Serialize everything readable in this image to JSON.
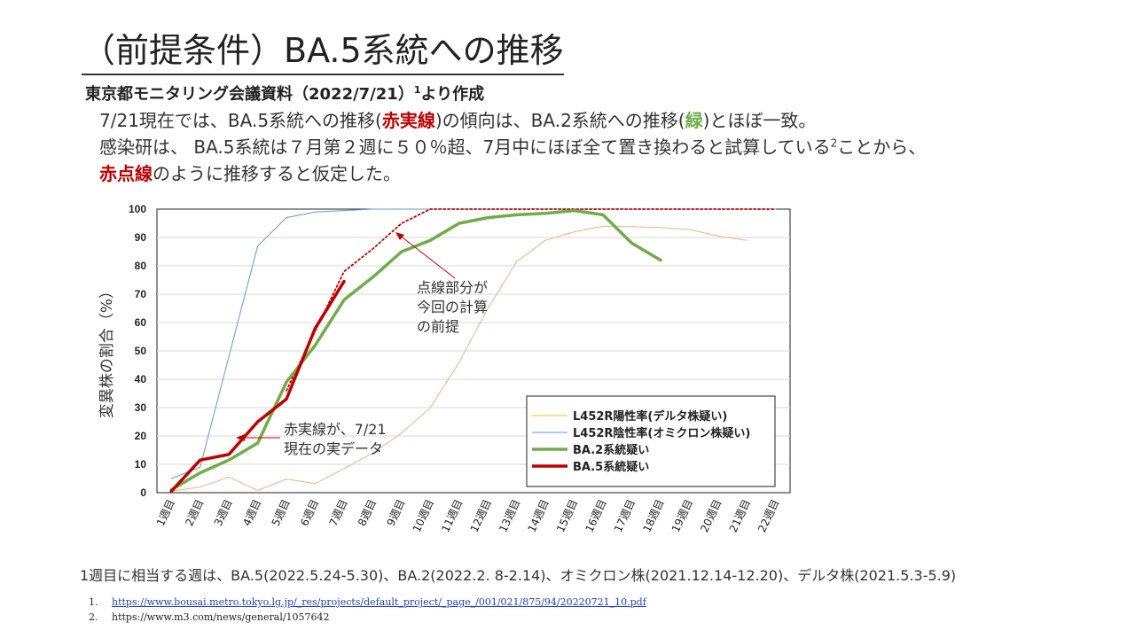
{
  "header": {
    "title": "（前提条件）BA.5系統への推移",
    "subtitle": "東京都モニタリング会議資料（2022/7/21）",
    "subtitle_sup": "1",
    "subtitle_suffix": "より作成"
  },
  "body_text": {
    "l1_a": "7/21現在では、BA.5系統への推移(",
    "l1_red": "赤実線",
    "l1_b": ")の傾向は、BA.2系統への推移(",
    "l1_green": "緑",
    "l1_c": ")とほぼ一致。",
    "l2_a": "感染研は、 BA.5系統は７月第２週に５０％超、7月中にほぼ全て置き換わると試算している",
    "l2_sup": "2",
    "l2_b": "ことから、",
    "l3_red": "赤点線",
    "l3_b": "のように推移すると仮定した。"
  },
  "footer": {
    "note": "1週目に相当する週は、BA.5(2022.5.24-5.30)、BA.2(2022.2. 8-2.14)、オミクロン株(2021.12.14-12.20)、デルタ株(2021.5.3-5.9)",
    "ref1_num": "1.",
    "ref1_text": "https://www.bousai.metro.tokyo.lg.jp/_res/projects/default_project/_page_/001/021/875/94/20220721_10.pdf",
    "ref2_num": "2.",
    "ref2_text": "https://www.m3.com/news/general/1057642"
  },
  "colors": {
    "delta": "#f4b183",
    "omicron": "#5b9bd5",
    "ba2": "#70ad47",
    "ba5": "#c00000",
    "l452r_pos_legend": "#ffc000"
  },
  "chart_data": {
    "type": "line",
    "categories": [
      "1週目",
      "2週目",
      "3週目",
      "4週目",
      "5週目",
      "6週目",
      "7週目",
      "8週目",
      "9週目",
      "10週目",
      "11週目",
      "12週目",
      "13週目",
      "14週目",
      "15週目",
      "16週目",
      "17週目",
      "18週目",
      "19週目",
      "20週目",
      "21週目",
      "22週目"
    ],
    "ylabel": "変異株の割合（%）",
    "ylim": [
      0,
      100
    ],
    "yticks": [
      0,
      10,
      20,
      30,
      40,
      50,
      60,
      70,
      80,
      90,
      100
    ],
    "grid": true,
    "legend_position": "bottom-right",
    "series": [
      {
        "name": "L452R陽性率(デルタ株疑い)",
        "key": "delta",
        "style": "thin",
        "values": [
          0.5,
          2,
          5.5,
          0.8,
          4.8,
          3.2,
          8.5,
          14,
          21,
          30,
          46,
          65,
          81.5,
          89,
          92,
          94,
          93.8,
          93.5,
          92.8,
          90.5,
          89,
          null
        ]
      },
      {
        "name": "L452R陰性率(オミクロン株疑い)",
        "key": "omicron",
        "style": "thin",
        "values": [
          5,
          9,
          48,
          87,
          97,
          99,
          99.5,
          100,
          100,
          100,
          100,
          100,
          100,
          100,
          100,
          100,
          100,
          100,
          100,
          100,
          100,
          100
        ]
      },
      {
        "name": "BA.2系統疑い",
        "key": "ba2",
        "style": "thick",
        "values": [
          1,
          7,
          11.5,
          17.5,
          39,
          52,
          68,
          76,
          85,
          89,
          95,
          97,
          98,
          98.5,
          99.5,
          98,
          88,
          82,
          null,
          null,
          null,
          null
        ]
      },
      {
        "name": "BA.5系統疑い",
        "key": "ba5",
        "style": "thick",
        "values": [
          0.5,
          11.5,
          13.5,
          25,
          33,
          58,
          74.5,
          null,
          null,
          null,
          null,
          null,
          null,
          null,
          null,
          null,
          null,
          null,
          null,
          null,
          null,
          null
        ]
      },
      {
        "name": "",
        "key": "ba5_assumed",
        "style": "dotted",
        "legend": false,
        "values": [
          null,
          null,
          null,
          null,
          36,
          57,
          78,
          86,
          95,
          100,
          100,
          100,
          100,
          100,
          100,
          100,
          100,
          100,
          100,
          100,
          100,
          100
        ]
      }
    ],
    "annotations": [
      {
        "text_lines": [
          "点線部分が",
          "今回の計算",
          "の前提"
        ]
      },
      {
        "text_lines": [
          "赤実線が、7/21",
          "現在の実データ"
        ]
      }
    ]
  }
}
